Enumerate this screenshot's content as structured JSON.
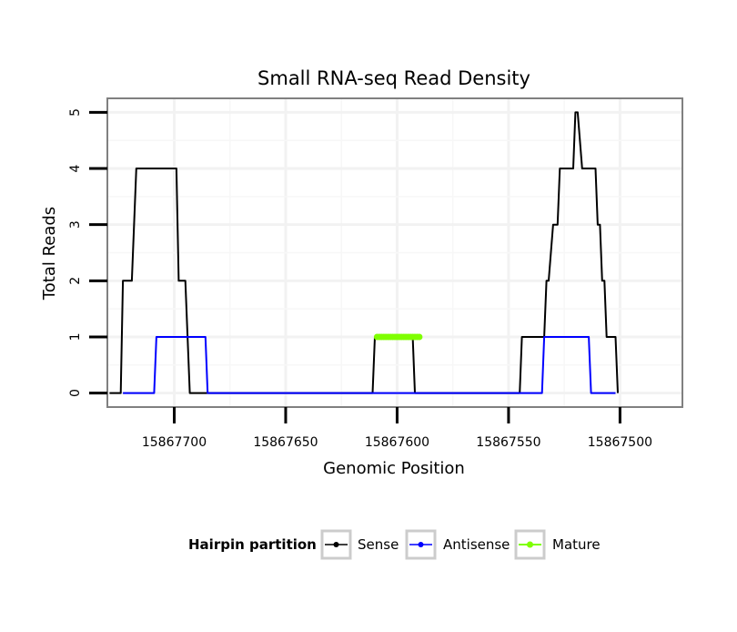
{
  "chart_data": {
    "type": "line",
    "title": "Small RNA-seq Read Density",
    "xlabel": "Genomic Position",
    "ylabel": "Total Reads",
    "xlim": [
      15867730,
      15867472
    ],
    "ylim": [
      -0.25,
      5.25
    ],
    "x_reversed": true,
    "x_ticks": [
      15867700,
      15867650,
      15867600,
      15867550,
      15867500
    ],
    "x_tick_labels": [
      "15867700",
      "15867650",
      "15867600",
      "15867550",
      "15867500"
    ],
    "y_ticks": [
      0,
      1,
      2,
      3,
      4,
      5
    ],
    "y_tick_labels": [
      "0",
      "1",
      "2",
      "3",
      "4",
      "5"
    ],
    "grid": true,
    "legend": {
      "title": "Hairpin partition",
      "placement": "bottom",
      "entries": [
        "Sense",
        "Antisense",
        "Mature"
      ]
    },
    "series": [
      {
        "name": "Sense",
        "color": "#000000",
        "points": [
          [
            15867729,
            0
          ],
          [
            15867724,
            0
          ],
          [
            15867723,
            2
          ],
          [
            15867719,
            2
          ],
          [
            15867717,
            4
          ],
          [
            15867699,
            4
          ],
          [
            15867698,
            2
          ],
          [
            15867695,
            2
          ],
          [
            15867693,
            0
          ],
          [
            15867611,
            0
          ],
          [
            15867610,
            1
          ],
          [
            15867593,
            1
          ],
          [
            15867592,
            0
          ],
          [
            15867545,
            0
          ],
          [
            15867544,
            1
          ],
          [
            15867534,
            1
          ],
          [
            15867533,
            2
          ],
          [
            15867532,
            2
          ],
          [
            15867530,
            3
          ],
          [
            15867528,
            3
          ],
          [
            15867527,
            4
          ],
          [
            15867521,
            4
          ],
          [
            15867520,
            5
          ],
          [
            15867519,
            5
          ],
          [
            15867517,
            4
          ],
          [
            15867511,
            4
          ],
          [
            15867510,
            3
          ],
          [
            15867509,
            3
          ],
          [
            15867508,
            2
          ],
          [
            15867507,
            2
          ],
          [
            15867506,
            1
          ],
          [
            15867502,
            1
          ],
          [
            15867501,
            0
          ]
        ]
      },
      {
        "name": "Antisense",
        "color": "#0000ff",
        "points": [
          [
            15867723,
            0
          ],
          [
            15867709,
            0
          ],
          [
            15867708,
            1
          ],
          [
            15867686,
            1
          ],
          [
            15867685,
            0
          ],
          [
            15867611,
            0
          ],
          [
            15867610,
            0
          ],
          [
            15867535,
            0
          ],
          [
            15867534,
            1
          ],
          [
            15867514,
            1
          ],
          [
            15867513,
            0
          ],
          [
            15867502,
            0
          ]
        ]
      },
      {
        "name": "Mature",
        "color": "#7fff00",
        "points": [
          [
            15867609,
            1
          ],
          [
            15867590,
            1
          ]
        ]
      }
    ]
  }
}
